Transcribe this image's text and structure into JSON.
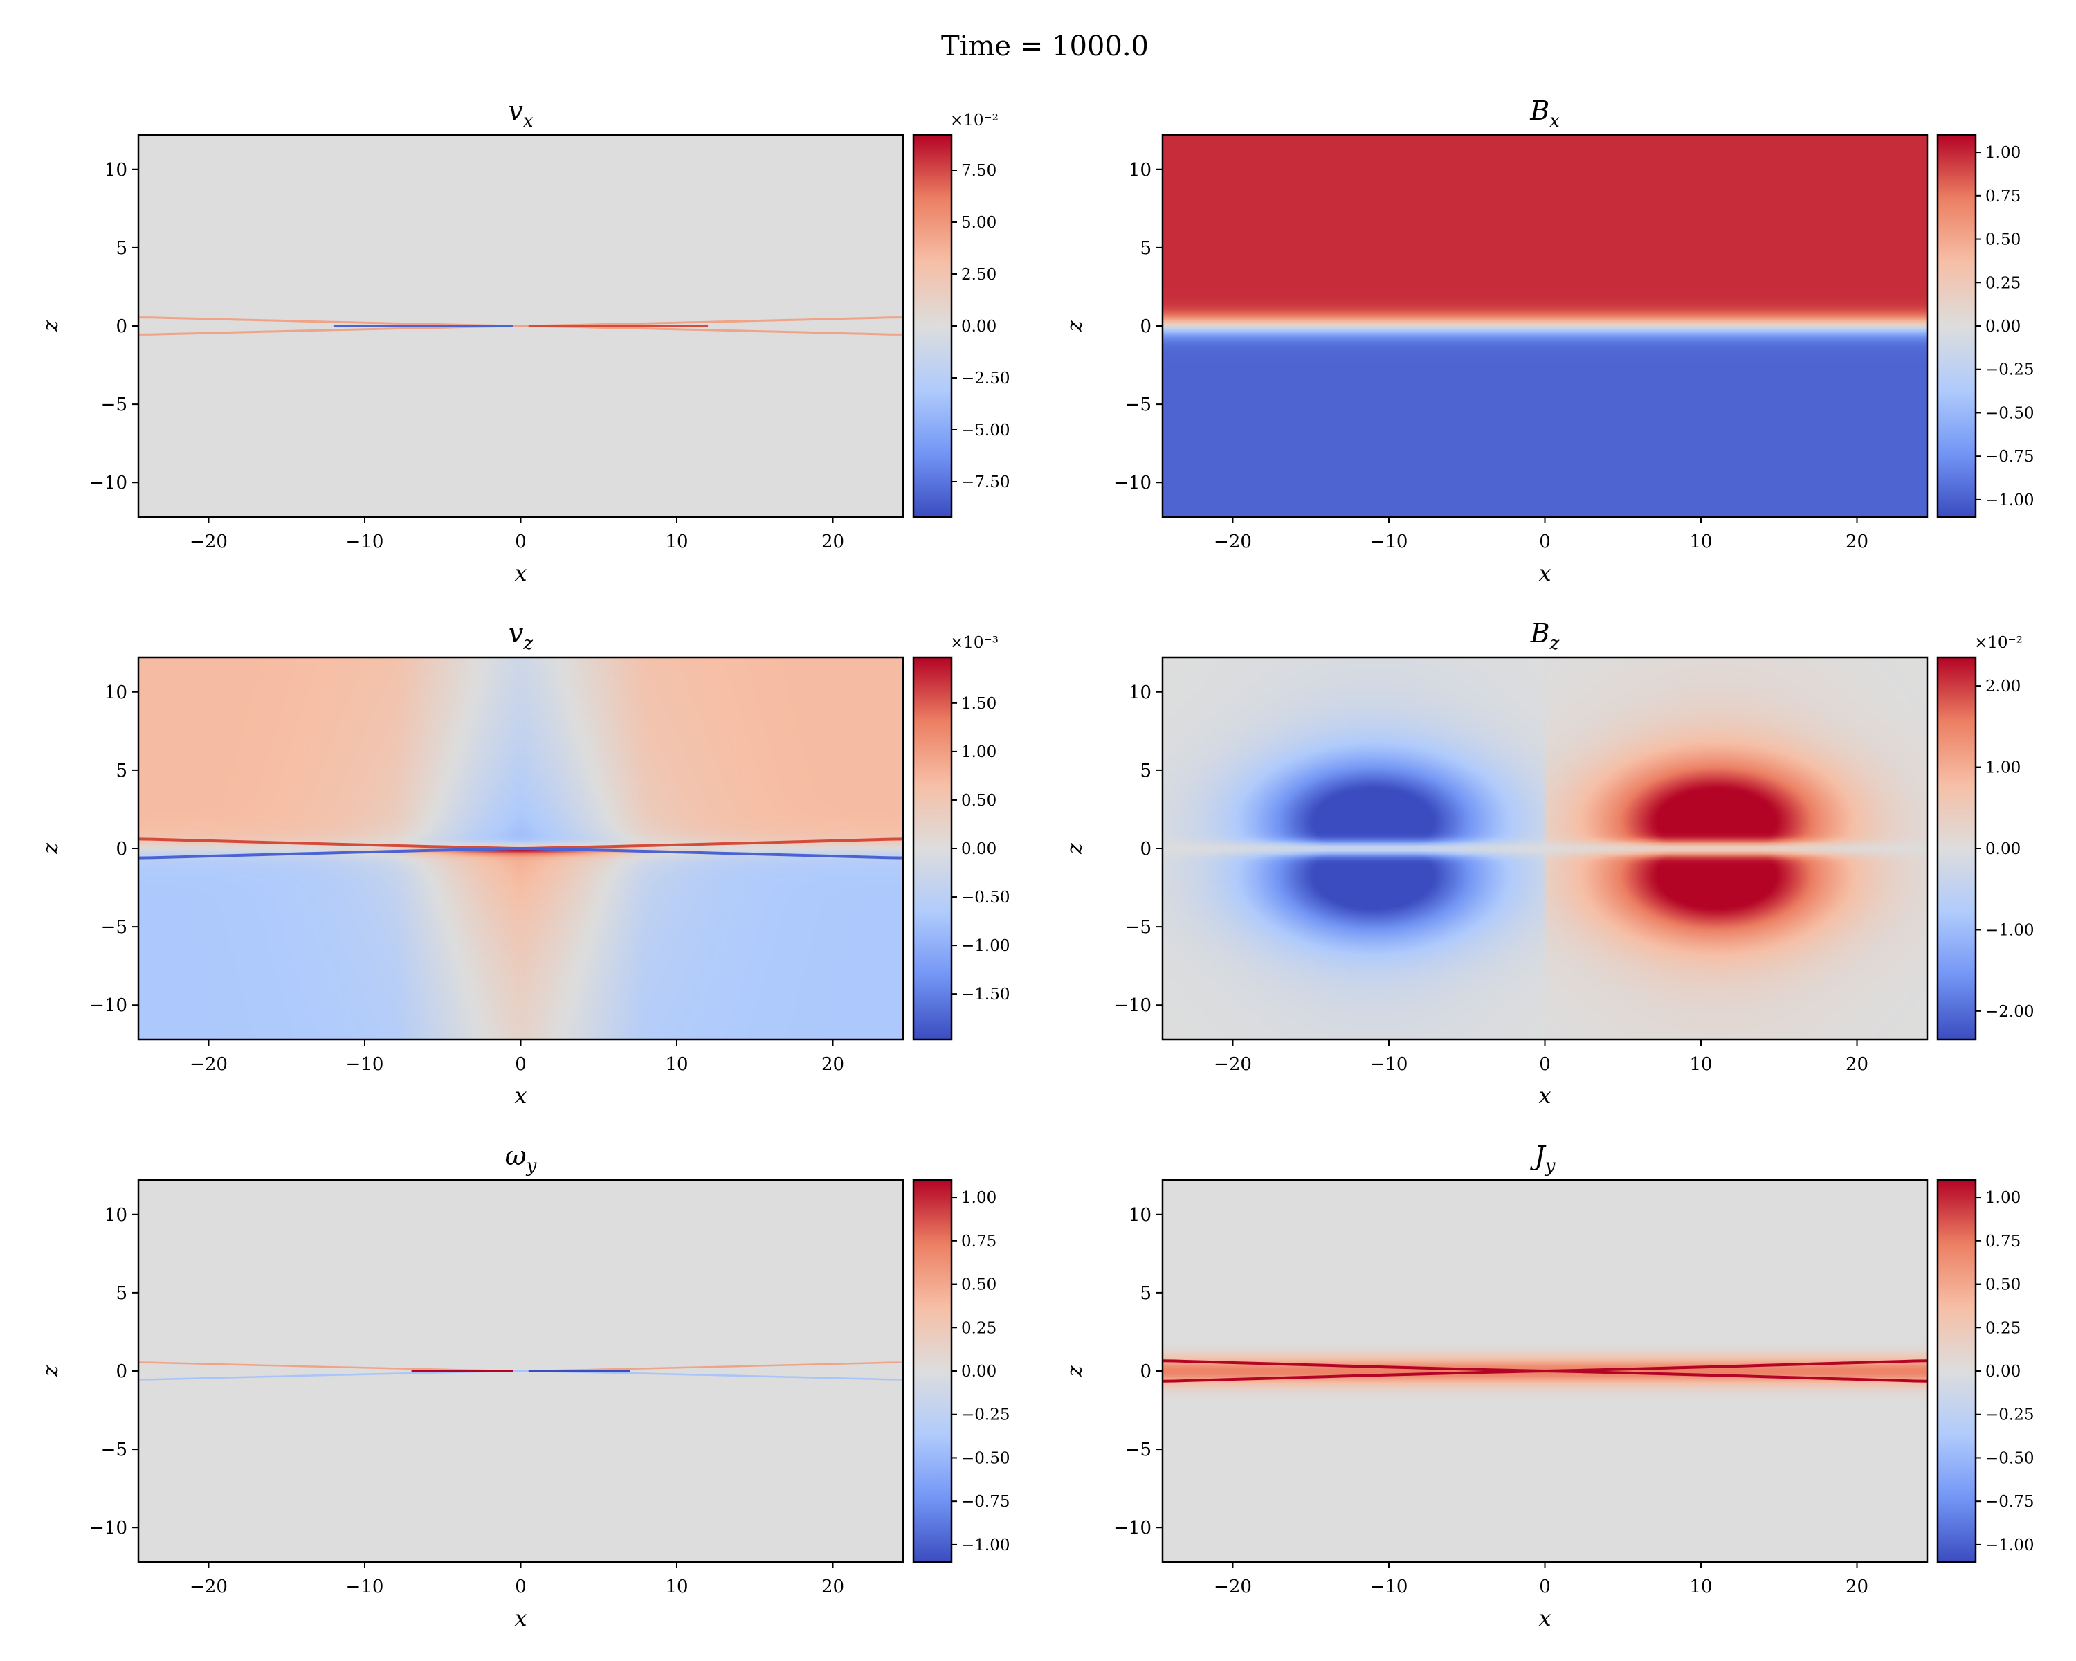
{
  "suptitle": "Time = 1000.0",
  "colormap": {
    "name": "coolwarm",
    "stops": [
      "#3b4cc0",
      "#7396f5",
      "#b0cbfc",
      "#dddddd",
      "#f6bfa6",
      "#ec7f63",
      "#b40426"
    ]
  },
  "chart_data": [
    {
      "type": "heatmap",
      "title": "v",
      "title_sub": "x",
      "xlabel": "x",
      "ylabel": "z",
      "xlim": [
        -24.5,
        24.5
      ],
      "ylim": [
        -12.2,
        12.2
      ],
      "x_ticks": [
        -20,
        -10,
        0,
        10,
        20
      ],
      "x_tick_labels": [
        "−20",
        "−10",
        "0",
        "10",
        "20"
      ],
      "y_ticks": [
        -10,
        -5,
        0,
        5,
        10
      ],
      "y_tick_labels": [
        "−10",
        "−5",
        "0",
        "5",
        "10"
      ],
      "field": "vx",
      "colorbar": {
        "range": [
          -9.2,
          9.2
        ],
        "ticks": [
          -7.5,
          -5.0,
          -2.5,
          0.0,
          2.5,
          5.0,
          7.5
        ],
        "tick_labels": [
          "−7.50",
          "−5.00",
          "−2.50",
          "0.00",
          "2.50",
          "5.00",
          "7.50"
        ],
        "exponent": "×10⁻²"
      }
    },
    {
      "type": "heatmap",
      "title": "B",
      "title_sub": "x",
      "xlabel": "x",
      "ylabel": "z",
      "xlim": [
        -24.5,
        24.5
      ],
      "ylim": [
        -12.2,
        12.2
      ],
      "x_ticks": [
        -20,
        -10,
        0,
        10,
        20
      ],
      "x_tick_labels": [
        "−20",
        "−10",
        "0",
        "10",
        "20"
      ],
      "y_ticks": [
        -10,
        -5,
        0,
        5,
        10
      ],
      "y_tick_labels": [
        "−10",
        "−5",
        "0",
        "5",
        "10"
      ],
      "field": "Bx",
      "colorbar": {
        "range": [
          -1.1,
          1.1
        ],
        "ticks": [
          -1.0,
          -0.75,
          -0.5,
          -0.25,
          0.0,
          0.25,
          0.5,
          0.75,
          1.0
        ],
        "tick_labels": [
          "−1.00",
          "−0.75",
          "−0.50",
          "−0.25",
          "0.00",
          "0.25",
          "0.50",
          "0.75",
          "1.00"
        ],
        "exponent": ""
      }
    },
    {
      "type": "heatmap",
      "title": "v",
      "title_sub": "z",
      "xlabel": "x",
      "ylabel": "z",
      "xlim": [
        -24.5,
        24.5
      ],
      "ylim": [
        -12.2,
        12.2
      ],
      "x_ticks": [
        -20,
        -10,
        0,
        10,
        20
      ],
      "x_tick_labels": [
        "−20",
        "−10",
        "0",
        "10",
        "20"
      ],
      "y_ticks": [
        -10,
        -5,
        0,
        5,
        10
      ],
      "y_tick_labels": [
        "−10",
        "−5",
        "0",
        "5",
        "10"
      ],
      "field": "vz",
      "colorbar": {
        "range": [
          -1.97,
          1.97
        ],
        "ticks": [
          -1.5,
          -1.0,
          -0.5,
          0.0,
          0.5,
          1.0,
          1.5
        ],
        "tick_labels": [
          "−1.50",
          "−1.00",
          "−0.50",
          "0.00",
          "0.50",
          "1.00",
          "1.50"
        ],
        "exponent": "×10⁻³"
      }
    },
    {
      "type": "heatmap",
      "title": "B",
      "title_sub": "z",
      "xlabel": "x",
      "ylabel": "z",
      "xlim": [
        -24.5,
        24.5
      ],
      "ylim": [
        -12.2,
        12.2
      ],
      "x_ticks": [
        -20,
        -10,
        0,
        10,
        20
      ],
      "x_tick_labels": [
        "−20",
        "−10",
        "0",
        "10",
        "20"
      ],
      "y_ticks": [
        -10,
        -5,
        0,
        5,
        10
      ],
      "y_tick_labels": [
        "−10",
        "−5",
        "0",
        "5",
        "10"
      ],
      "field": "Bz",
      "colorbar": {
        "range": [
          -2.35,
          2.35
        ],
        "ticks": [
          -2.0,
          -1.0,
          0.0,
          1.0,
          2.0
        ],
        "tick_labels": [
          "−2.00",
          "−1.00",
          "0.00",
          "1.00",
          "2.00"
        ],
        "exponent": "×10⁻²"
      }
    },
    {
      "type": "heatmap",
      "title": "ω",
      "title_sub": "y",
      "xlabel": "x",
      "ylabel": "z",
      "xlim": [
        -24.5,
        24.5
      ],
      "ylim": [
        -12.2,
        12.2
      ],
      "x_ticks": [
        -20,
        -10,
        0,
        10,
        20
      ],
      "x_tick_labels": [
        "−20",
        "−10",
        "0",
        "10",
        "20"
      ],
      "y_ticks": [
        -10,
        -5,
        0,
        5,
        10
      ],
      "y_tick_labels": [
        "−10",
        "−5",
        "0",
        "5",
        "10"
      ],
      "field": "wy",
      "colorbar": {
        "range": [
          -1.1,
          1.1
        ],
        "ticks": [
          -1.0,
          -0.75,
          -0.5,
          -0.25,
          0.0,
          0.25,
          0.5,
          0.75,
          1.0
        ],
        "tick_labels": [
          "−1.00",
          "−0.75",
          "−0.50",
          "−0.25",
          "0.00",
          "0.25",
          "0.50",
          "0.75",
          "1.00"
        ],
        "exponent": ""
      }
    },
    {
      "type": "heatmap",
      "title": "J",
      "title_sub": "y",
      "xlabel": "x",
      "ylabel": "z",
      "xlim": [
        -24.5,
        24.5
      ],
      "ylim": [
        -12.2,
        12.2
      ],
      "x_ticks": [
        -20,
        -10,
        0,
        10,
        20
      ],
      "x_tick_labels": [
        "−20",
        "−10",
        "0",
        "10",
        "20"
      ],
      "y_ticks": [
        -10,
        -5,
        0,
        5,
        10
      ],
      "y_tick_labels": [
        "−10",
        "−5",
        "0",
        "5",
        "10"
      ],
      "field": "Jy",
      "colorbar": {
        "range": [
          -1.1,
          1.1
        ],
        "ticks": [
          -1.0,
          -0.75,
          -0.5,
          -0.25,
          0.0,
          0.25,
          0.5,
          0.75,
          1.0
        ],
        "tick_labels": [
          "−1.00",
          "−0.75",
          "−0.50",
          "−0.25",
          "0.00",
          "0.25",
          "0.50",
          "0.75",
          "1.00"
        ],
        "exponent": ""
      }
    }
  ]
}
